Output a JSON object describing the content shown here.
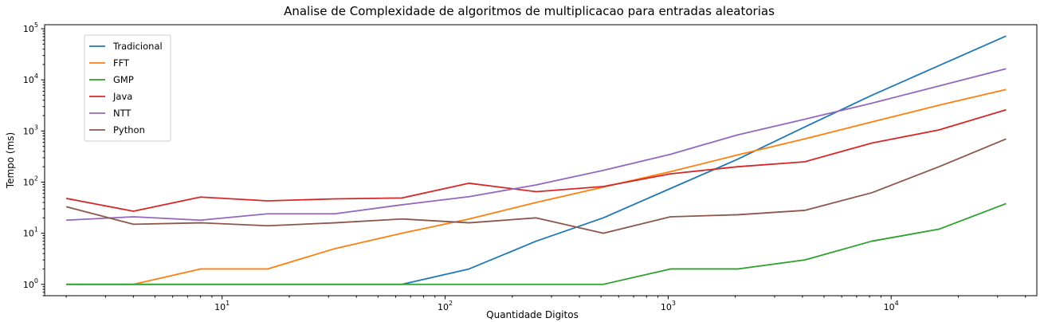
{
  "chart_data": {
    "type": "line",
    "title": "Analise de Complexidade de algoritmos de multiplicacao para entradas aleatorias",
    "xlabel": "Quantidade Digitos",
    "ylabel": "Tempo (ms)",
    "xscale": "log",
    "yscale": "log",
    "xlim": [
      1.6,
      45000
    ],
    "ylim": [
      0.6,
      120000
    ],
    "grid": false,
    "legend_position": "upper left",
    "x": [
      2,
      4,
      8,
      16,
      32,
      64,
      128,
      256,
      512,
      1024,
      2048,
      4096,
      8192,
      16384,
      32768
    ],
    "x_ticks": [
      {
        "value": 10,
        "base": "10",
        "exp": "1"
      },
      {
        "value": 100,
        "base": "10",
        "exp": "2"
      },
      {
        "value": 1000,
        "base": "10",
        "exp": "3"
      },
      {
        "value": 10000,
        "base": "10",
        "exp": "4"
      }
    ],
    "y_ticks": [
      {
        "value": 1,
        "base": "10",
        "exp": "0"
      },
      {
        "value": 10,
        "base": "10",
        "exp": "1"
      },
      {
        "value": 100,
        "base": "10",
        "exp": "2"
      },
      {
        "value": 1000,
        "base": "10",
        "exp": "3"
      },
      {
        "value": 10000,
        "base": "10",
        "exp": "4"
      },
      {
        "value": 100000,
        "base": "10",
        "exp": "5"
      }
    ],
    "series": [
      {
        "name": "Tradicional",
        "color": "#1f77b4",
        "values": [
          1,
          1,
          1,
          1,
          1,
          1,
          2,
          7,
          20,
          75,
          280,
          1200,
          5000,
          19000,
          72000
        ]
      },
      {
        "name": "FFT",
        "color": "#ff7f0e",
        "values": [
          1,
          1,
          2,
          2,
          5,
          10,
          19,
          40,
          80,
          160,
          340,
          700,
          1500,
          3200,
          6500
        ]
      },
      {
        "name": "GMP",
        "color": "#2ca02c",
        "values": [
          1,
          1,
          1,
          1,
          1,
          1,
          1,
          1,
          1,
          2,
          2,
          3,
          7,
          12,
          38
        ]
      },
      {
        "name": "Java",
        "color": "#d62728",
        "values": [
          48,
          27,
          51,
          43,
          47,
          49,
          95,
          65,
          82,
          145,
          200,
          250,
          580,
          1050,
          2600
        ]
      },
      {
        "name": "NTT",
        "color": "#9467bd",
        "values": [
          18,
          21,
          18,
          24,
          24,
          36,
          52,
          88,
          170,
          350,
          840,
          1700,
          3500,
          7600,
          16500
        ]
      },
      {
        "name": "Python",
        "color": "#8c564b",
        "values": [
          33,
          15,
          16,
          14,
          16,
          19,
          16,
          20,
          10,
          21,
          23,
          28,
          62,
          200,
          700
        ]
      }
    ]
  }
}
